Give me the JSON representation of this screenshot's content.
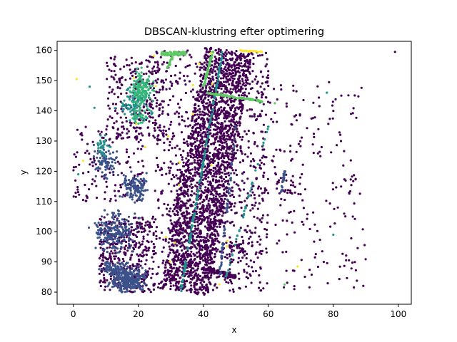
{
  "chart_data": {
    "type": "scatter",
    "title": "DBSCAN-klustring efter optimering",
    "xlabel": "x",
    "ylabel": "y",
    "xlim": [
      -5,
      104
    ],
    "ylim": [
      76,
      163
    ],
    "xticks": [
      0,
      20,
      40,
      60,
      80,
      100
    ],
    "yticks": [
      80,
      90,
      100,
      110,
      120,
      130,
      140,
      150,
      160
    ],
    "grid": false,
    "legend": "none",
    "colormap": "viridis",
    "colors": {
      "noise": "#440154",
      "dark_blue": "#3b528b",
      "teal": "#21918c",
      "green": "#5ec962",
      "yellow": "#fde725",
      "mid_green": "#35b779"
    },
    "clusters": [
      {
        "label": "noise",
        "color": "noise",
        "regions": [
          {
            "type": "band",
            "start": [
              34,
              80
            ],
            "end": [
              48,
              160
            ],
            "width": 15,
            "n": 2200
          },
          {
            "type": "box",
            "x": [
              25,
              60
            ],
            "y": [
              80,
              160
            ],
            "n": 900
          },
          {
            "type": "box",
            "x": [
              8,
              25
            ],
            "y": [
              80,
              105
            ],
            "n": 420
          },
          {
            "type": "box",
            "x": [
              10,
              28
            ],
            "y": [
              130,
              158
            ],
            "n": 260
          },
          {
            "type": "box",
            "x": [
              0,
              22
            ],
            "y": [
              110,
              135
            ],
            "n": 140
          },
          {
            "type": "box",
            "x": [
              55,
              90
            ],
            "y": [
              80,
              150
            ],
            "n": 200
          },
          {
            "type": "box",
            "x": [
              62,
              70
            ],
            "y": [
              112,
              120
            ],
            "n": 25
          },
          {
            "type": "box",
            "x": [
              48,
              53
            ],
            "y": [
              93,
              97
            ],
            "n": 30
          },
          {
            "type": "line",
            "start": [
              40,
              88
            ],
            "end": [
              50,
              85
            ],
            "width": 1.2,
            "n": 120
          }
        ]
      },
      {
        "label": "c1",
        "color": "dark_blue",
        "regions": [
          {
            "type": "blob",
            "center": [
              17,
              84
            ],
            "r": [
              4,
              3
            ],
            "n": 260
          },
          {
            "type": "blob",
            "center": [
              13,
              100
            ],
            "r": [
              5,
              5
            ],
            "n": 200
          },
          {
            "type": "blob",
            "center": [
              19,
              114
            ],
            "r": [
              3,
              4
            ],
            "n": 120
          },
          {
            "type": "blob",
            "center": [
              10,
              123
            ],
            "r": [
              3,
              4
            ],
            "n": 80
          },
          {
            "type": "blob",
            "center": [
              13,
              88
            ],
            "r": [
              4,
              2
            ],
            "n": 80
          },
          {
            "type": "line",
            "start": [
              64,
              113
            ],
            "end": [
              65,
              120
            ],
            "width": 0.4,
            "n": 25
          },
          {
            "type": "line",
            "start": [
              45,
              85
            ],
            "end": [
              50,
              135
            ],
            "width": 0.5,
            "n": 60
          }
        ]
      },
      {
        "label": "c2",
        "color": "teal",
        "regions": [
          {
            "type": "line",
            "start": [
              33,
              80
            ],
            "end": [
              46,
              160
            ],
            "width": 0.4,
            "n": 170
          },
          {
            "type": "line",
            "start": [
              47,
              85
            ],
            "end": [
              60,
              135
            ],
            "width": 0.3,
            "n": 40
          },
          {
            "type": "blob",
            "center": [
              19,
              142
            ],
            "r": [
              4,
              4
            ],
            "n": 80
          },
          {
            "type": "blob",
            "center": [
              9,
              128
            ],
            "r": [
              1.5,
              3
            ],
            "n": 30
          }
        ]
      },
      {
        "label": "c3",
        "color": "mid_green",
        "regions": [
          {
            "type": "blob",
            "center": [
              21,
              147
            ],
            "r": [
              2.5,
              5
            ],
            "n": 150
          },
          {
            "type": "blob",
            "center": [
              20,
              138
            ],
            "r": [
              2,
              2
            ],
            "n": 30
          }
        ]
      },
      {
        "label": "c4",
        "color": "green",
        "regions": [
          {
            "type": "line",
            "start": [
              40,
              148
            ],
            "end": [
              43,
              160
            ],
            "width": 0.4,
            "n": 70
          },
          {
            "type": "line",
            "start": [
              41,
              146
            ],
            "end": [
              59,
              143
            ],
            "width": 0.5,
            "n": 90
          },
          {
            "type": "line",
            "start": [
              27,
              159
            ],
            "end": [
              35,
              159
            ],
            "width": 1.2,
            "n": 80
          },
          {
            "type": "line",
            "start": [
              29,
              154
            ],
            "end": [
              31,
              159
            ],
            "width": 0.5,
            "n": 20
          }
        ]
      },
      {
        "label": "c5",
        "color": "yellow",
        "regions": [
          {
            "type": "line",
            "start": [
              51,
              160
            ],
            "end": [
              58,
              159.5
            ],
            "width": 0.4,
            "n": 18
          },
          {
            "type": "box",
            "x": [
              18,
              50
            ],
            "y": [
              80,
              160
            ],
            "n": 20
          }
        ]
      }
    ],
    "outliers": [
      {
        "x": 99,
        "y": 159.5,
        "color": "noise"
      },
      {
        "x": 80,
        "y": 140,
        "color": "noise"
      },
      {
        "x": 86,
        "y": 105,
        "color": "noise"
      },
      {
        "x": 68,
        "y": 81,
        "color": "noise"
      },
      {
        "x": 68,
        "y": 82,
        "color": "noise"
      },
      {
        "x": 65,
        "y": 82.5,
        "color": "green"
      },
      {
        "x": 69,
        "y": 88.5,
        "color": "yellow"
      },
      {
        "x": 78,
        "y": 146,
        "color": "teal"
      },
      {
        "x": 80,
        "y": 99,
        "color": "teal"
      },
      {
        "x": 62,
        "y": 142.5,
        "color": "green"
      },
      {
        "x": 1,
        "y": 150.5,
        "color": "yellow"
      },
      {
        "x": 1.5,
        "y": 119,
        "color": "teal"
      },
      {
        "x": 3,
        "y": 123.5,
        "color": "yellow"
      },
      {
        "x": 5,
        "y": 148,
        "color": "teal"
      },
      {
        "x": 6.5,
        "y": 141,
        "color": "teal"
      }
    ]
  }
}
